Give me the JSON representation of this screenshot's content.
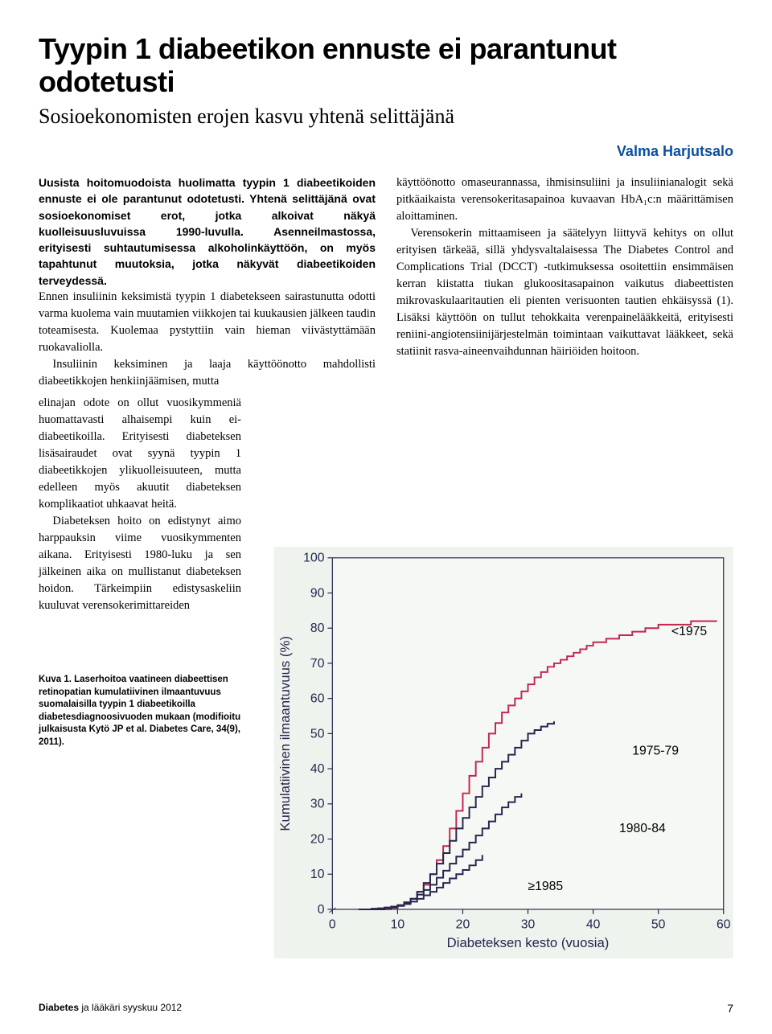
{
  "title": "Tyypin 1 diabeetikon ennuste ei parantunut odotetusti",
  "subtitle": "Sosioekonomisten erojen kasvu yhtenä selittäjänä",
  "author": "Valma Harjutsalo",
  "author_color": "#0a4fa0",
  "intro": "Uusista hoitomuodoista huolimatta tyypin 1 diabeetikoiden ennuste ei ole parantunut odotetusti. Yhtenä selittäjänä ovat sosioekonomiset erot, jotka alkoivat näkyä kuolleisuusluvuissa 1990-luvulla. Asenneilmastossa, erityisesti suhtautumisessa alkoholinkäyttöön, on myös tapahtunut muutoksia, jotka näkyvät diabeetikoiden terveydessä.",
  "left_col": {
    "p1": "Ennen insuliinin keksimistä tyypin 1 diabetekseen sairastunutta odotti varma kuolema vain muutamien viikkojen tai kuukausien jälkeen taudin toteamisesta. Kuolemaa pystyttiin vain hieman viivästyttämään ruokavaliolla.",
    "p2": "Insuliinin keksiminen ja laaja käyttöönotto mahdollisti diabeetikkojen henkiinjäämisen, mutta"
  },
  "left_narrow": {
    "p3": "elinajan odote on ollut vuosikymmeniä huomattavasti alhaisempi kuin ei-diabeetikoilla. Erityisesti diabeteksen lisäsairaudet ovat syynä tyypin 1 diabeetikkojen ylikuolleisuuteen, mutta edelleen myös akuutit diabeteksen komplikaatiot uhkaavat heitä.",
    "p4": "Diabeteksen hoito on edistynyt aimo harppauksin viime vuosikymmenten aikana. Erityisesti 1980-luku ja sen jälkeinen aika on mullistanut diabeteksen hoidon. Tärkeimpiin edistysaskeliin kuuluvat verensokerimittareiden"
  },
  "right_col": {
    "p1": "käyttöönotto omaseurannassa, ihmisinsuliini ja insuliinianalogit sekä pitkäaikaista verensokeritasapainoa kuvaavan HbA₁c:n määrittämisen aloittaminen.",
    "p2": "Verensokerin mittaamiseen ja säätelyyn liittyvä kehitys on ollut erityisen tärkeää, sillä yhdysvaltalaisessa The Diabetes Control and Complications Trial (DCCT) -tutkimuksessa osoitettiin ensimmäisen kerran kiistatta tiukan glukoositasapainon vaikutus diabeettisten mikrovaskulaaritautien eli pienten verisuonten tautien ehkäisyssä (1). Lisäksi käyttöön on tullut tehokkaita verenpainelääkkeitä, erityisesti reniini-angiotensiinijärjestelmän toimintaan vaikuttavat lääkkeet, sekä statiinit rasva-aineenvaihdunnan häiriöiden hoitoon."
  },
  "caption": "Kuva 1. Laserhoitoa vaatineen diabeettisen retinopatian kumulatiivinen ilmaantuvuus suomalaisilla tyypin 1 diabeetikoilla diabetesdiagnoosivuoden mukaan (modifioitu julkaisusta Kytö JP et al. Diabetes Care, 34(9), 2011).",
  "footer_mag_bold": "Diabetes",
  "footer_mag_rest": " ja lääkäri  syyskuu 2012",
  "footer_page": "7",
  "chart": {
    "type": "line-step",
    "xlabel": "Diabeteksen kesto (vuosia)",
    "ylabel": "Kumulatiivinen ilmaantuvuus (%)",
    "xlim": [
      0,
      60
    ],
    "ylim": [
      0,
      100
    ],
    "xticks": [
      0,
      10,
      20,
      30,
      40,
      50,
      60
    ],
    "yticks": [
      0,
      10,
      20,
      30,
      40,
      50,
      60,
      70,
      80,
      90,
      100
    ],
    "background_color": "#eef3ee",
    "plot_bg": "#f5f8f4",
    "axis_color": "#26264d",
    "tick_fontsize": 16,
    "label_fontsize": 17,
    "line_width": 2,
    "series": [
      {
        "name": "<1975",
        "color": "#c22850",
        "label_xy": [
          52,
          78
        ],
        "points": [
          [
            8,
            0
          ],
          [
            9,
            0.5
          ],
          [
            10,
            1.2
          ],
          [
            11,
            2
          ],
          [
            12,
            3
          ],
          [
            13,
            5
          ],
          [
            14,
            7
          ],
          [
            15,
            10
          ],
          [
            16,
            14
          ],
          [
            17,
            18
          ],
          [
            18,
            23
          ],
          [
            19,
            28
          ],
          [
            20,
            33
          ],
          [
            21,
            38
          ],
          [
            22,
            42
          ],
          [
            23,
            46
          ],
          [
            24,
            50
          ],
          [
            25,
            53
          ],
          [
            26,
            56
          ],
          [
            27,
            58
          ],
          [
            28,
            60
          ],
          [
            29,
            62
          ],
          [
            30,
            64
          ],
          [
            31,
            66
          ],
          [
            32,
            67.5
          ],
          [
            33,
            69
          ],
          [
            34,
            70
          ],
          [
            35,
            71
          ],
          [
            36,
            72
          ],
          [
            37,
            73
          ],
          [
            38,
            74
          ],
          [
            39,
            75
          ],
          [
            40,
            76
          ],
          [
            42,
            77
          ],
          [
            44,
            78
          ],
          [
            46,
            79
          ],
          [
            48,
            80
          ],
          [
            50,
            81
          ],
          [
            55,
            82
          ],
          [
            59,
            82
          ]
        ]
      },
      {
        "name": "1975-79",
        "color": "#26264d",
        "label_xy": [
          46,
          44
        ],
        "points": [
          [
            6,
            0
          ],
          [
            8,
            0.5
          ],
          [
            10,
            1
          ],
          [
            11,
            1.8
          ],
          [
            12,
            3
          ],
          [
            13,
            5
          ],
          [
            14,
            7.5
          ],
          [
            15,
            10
          ],
          [
            16,
            13
          ],
          [
            17,
            16
          ],
          [
            18,
            19.5
          ],
          [
            19,
            23
          ],
          [
            20,
            26
          ],
          [
            21,
            29
          ],
          [
            22,
            32
          ],
          [
            23,
            35
          ],
          [
            24,
            37.5
          ],
          [
            25,
            40
          ],
          [
            26,
            42
          ],
          [
            27,
            44
          ],
          [
            28,
            46
          ],
          [
            29,
            48
          ],
          [
            30,
            50
          ],
          [
            31,
            51
          ],
          [
            32,
            52
          ],
          [
            33,
            52.8
          ],
          [
            34,
            53.5
          ]
        ]
      },
      {
        "name": "1980-84",
        "color": "#26264d",
        "label_xy": [
          44,
          22
        ],
        "points": [
          [
            5,
            0
          ],
          [
            7,
            0.3
          ],
          [
            9,
            0.8
          ],
          [
            10,
            1.2
          ],
          [
            11,
            2
          ],
          [
            12,
            3
          ],
          [
            13,
            4.2
          ],
          [
            14,
            5.5
          ],
          [
            15,
            7
          ],
          [
            16,
            9
          ],
          [
            17,
            11
          ],
          [
            18,
            13
          ],
          [
            19,
            15
          ],
          [
            20,
            17
          ],
          [
            21,
            19
          ],
          [
            22,
            21
          ],
          [
            23,
            23
          ],
          [
            24,
            25
          ],
          [
            25,
            27
          ],
          [
            26,
            29
          ],
          [
            27,
            30.5
          ],
          [
            28,
            32
          ],
          [
            29,
            33
          ]
        ]
      },
      {
        "name": "≥1985",
        "color": "#26264d",
        "label_xy": [
          30,
          5.5
        ],
        "points": [
          [
            4,
            0
          ],
          [
            6,
            0.2
          ],
          [
            8,
            0.5
          ],
          [
            10,
            1
          ],
          [
            11,
            1.5
          ],
          [
            12,
            2.2
          ],
          [
            13,
            3
          ],
          [
            14,
            4
          ],
          [
            15,
            5
          ],
          [
            16,
            6.2
          ],
          [
            17,
            7.5
          ],
          [
            18,
            8.8
          ],
          [
            19,
            10
          ],
          [
            20,
            11.2
          ],
          [
            21,
            12.5
          ],
          [
            22,
            14
          ],
          [
            23,
            15.5
          ]
        ]
      }
    ]
  }
}
